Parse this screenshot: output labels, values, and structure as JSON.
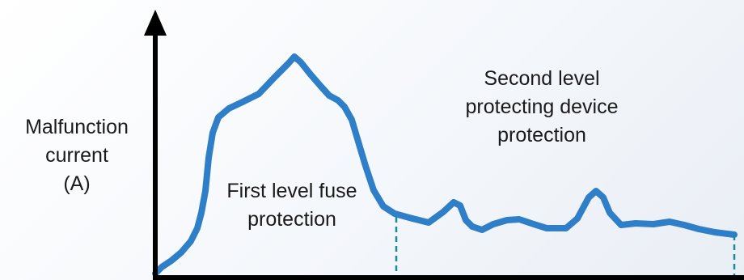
{
  "y_axis_label": [
    "Malfunction",
    "current",
    "(A)"
  ],
  "regions": {
    "first": [
      "First level fuse",
      "protection"
    ],
    "second": [
      "Second level",
      "protecting device",
      "protection"
    ]
  },
  "colors": {
    "curve": "#2f7fc8",
    "axis": "#000000",
    "divider": "#1a8a9a",
    "text": "#1a1a1a"
  }
}
